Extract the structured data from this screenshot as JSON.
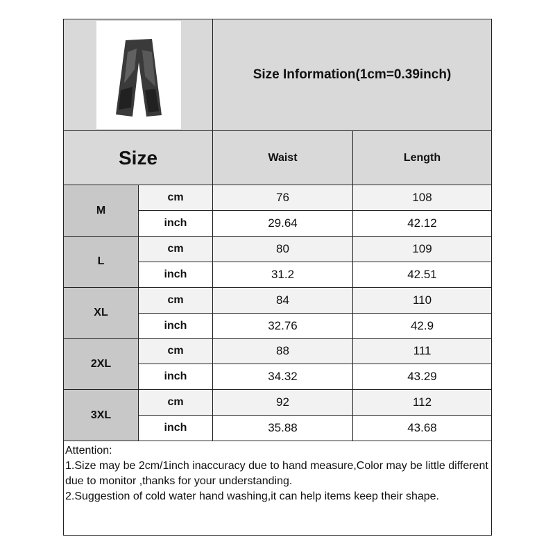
{
  "title": "Size Information(1cm=0.39inch)",
  "headers": {
    "size": "Size",
    "waist": "Waist",
    "length": "Length"
  },
  "units": {
    "cm": "cm",
    "inch": "inch"
  },
  "rows": [
    {
      "size": "M",
      "cm": {
        "waist": "76",
        "length": "108"
      },
      "inch": {
        "waist": "29.64",
        "length": "42.12"
      }
    },
    {
      "size": "L",
      "cm": {
        "waist": "80",
        "length": "109"
      },
      "inch": {
        "waist": "31.2",
        "length": "42.51"
      }
    },
    {
      "size": "XL",
      "cm": {
        "waist": "84",
        "length": "110"
      },
      "inch": {
        "waist": "32.76",
        "length": "42.9"
      }
    },
    {
      "size": "2XL",
      "cm": {
        "waist": "88",
        "length": "111"
      },
      "inch": {
        "waist": "34.32",
        "length": "43.29"
      }
    },
    {
      "size": "3XL",
      "cm": {
        "waist": "92",
        "length": "112"
      },
      "inch": {
        "waist": "35.88",
        "length": "43.68"
      }
    }
  ],
  "attention": {
    "heading": "Attention:",
    "notes": [
      "1.Size may be 2cm/1inch inaccuracy due to hand measure,Color may be little different due to monitor ,thanks for your understanding.",
      "2.Suggestion of cold water hand washing,it can help items keep their shape."
    ]
  },
  "product_image": "wide-leg-distressed-black-jeans"
}
